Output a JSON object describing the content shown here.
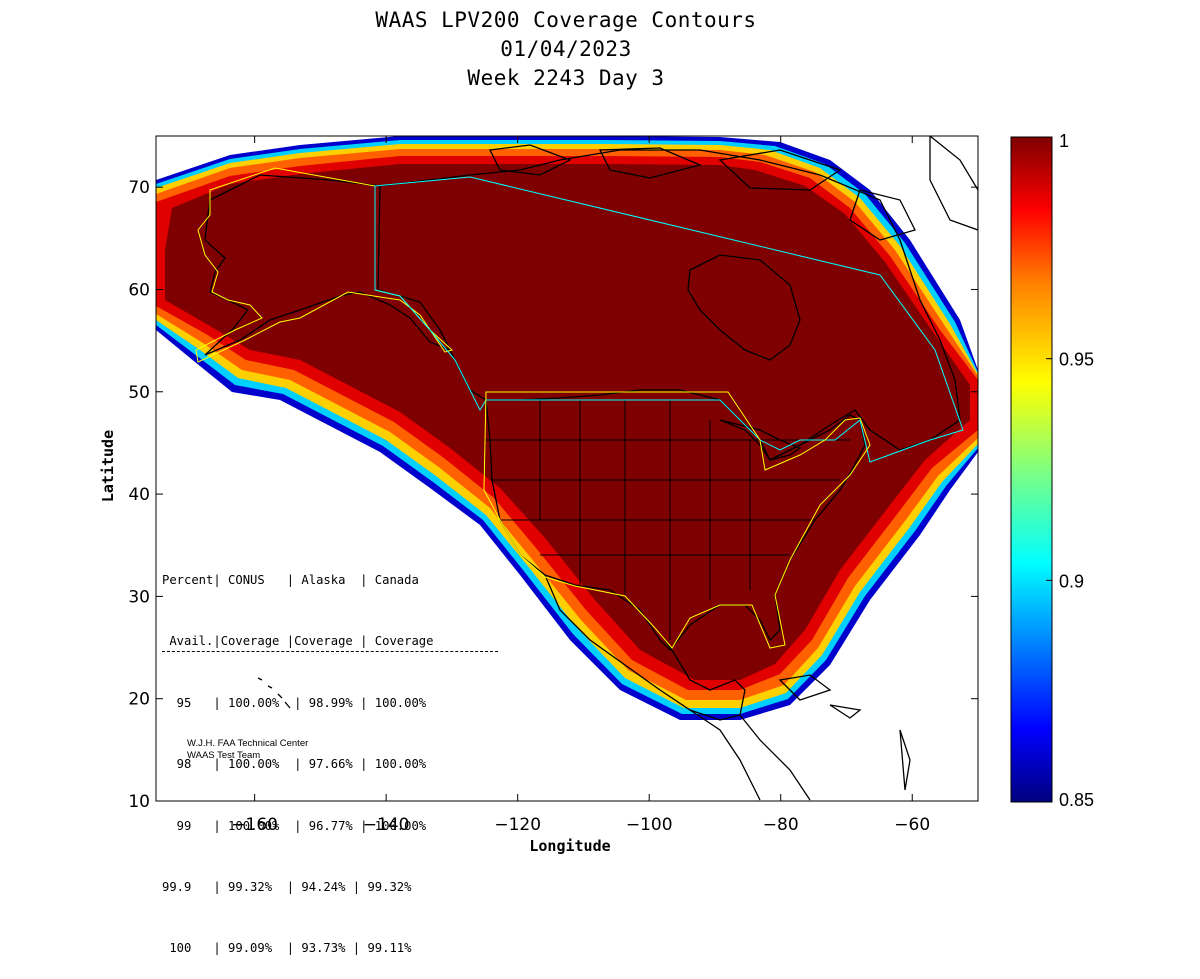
{
  "title": {
    "line1": "WAAS LPV200 Coverage Contours",
    "line2": "01/04/2023",
    "line3": "Week 2243 Day 3"
  },
  "axes": {
    "xlabel": "Longitude",
    "ylabel": "Latitude",
    "xlim": [
      -175,
      -50
    ],
    "ylim": [
      10,
      75
    ],
    "xticks": [
      -160,
      -140,
      -120,
      -100,
      -80,
      -60
    ],
    "yticks": [
      10,
      20,
      30,
      40,
      50,
      60,
      70
    ]
  },
  "colorbar": {
    "range": [
      0.85,
      1
    ],
    "ticks": [
      "1",
      "0.95",
      "0.9",
      "0.85"
    ],
    "colormap": [
      "#00007f",
      "#0000ff",
      "#0080ff",
      "#00ffff",
      "#80ff80",
      "#ffff00",
      "#ff8000",
      "#ff0000",
      "#7f0000"
    ]
  },
  "colors": {
    "full_coverage": "#7f0000",
    "land_outline": "#000000",
    "conus_alaska_boundary": "#ffff00",
    "canada_boundary": "#00ffff"
  },
  "table": {
    "header1": "Percent| CONUS   | Alaska  | Canada",
    "header2": " Avail.|Coverage |Coverage | Coverage",
    "rows": [
      "  95   | 100.00%  | 98.99% | 100.00%",
      "  98   | 100.00%  | 97.66% | 100.00%",
      "  99   | 100.00%  | 96.77% | 100.00%",
      "99.9   | 99.32%  | 94.24% | 99.32%",
      " 100   | 99.09%  | 93.73% | 99.11%"
    ]
  },
  "credit": {
    "line1": "W.J.H. FAA Technical Center",
    "line2": "WAAS Test Team"
  }
}
